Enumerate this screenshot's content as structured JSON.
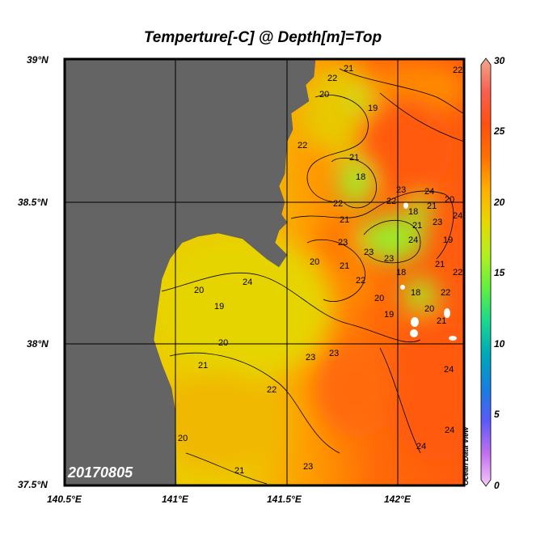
{
  "title": "Temperture[-C] @ Depth[m]=Top",
  "date_label": "20170805",
  "watermark": "Ocean Data View",
  "map": {
    "lon_range": [
      140.5,
      142.3
    ],
    "lat_range": [
      37.5,
      39.0
    ],
    "x_ticks": [
      "140.5°E",
      "141°E",
      "141.5°E",
      "142°E"
    ],
    "y_ticks": [
      "39°N",
      "38.5°N",
      "38°N",
      "37.5°N"
    ],
    "grid": true,
    "land_color": "#646464",
    "contour_labels": [
      "22",
      "21",
      "20",
      "22",
      "19",
      "22",
      "21",
      "18",
      "22",
      "23",
      "24",
      "21",
      "22",
      "23",
      "24",
      "23",
      "21",
      "18",
      "19",
      "20",
      "21",
      "23",
      "24",
      "18",
      "21",
      "22",
      "23",
      "20",
      "21",
      "22",
      "20",
      "19",
      "18",
      "20",
      "21",
      "22",
      "23",
      "24",
      "19",
      "20",
      "21",
      "22",
      "23",
      "24",
      "24",
      "24",
      "23",
      "21",
      "20",
      "20"
    ]
  },
  "colorbar": {
    "range": [
      0,
      30
    ],
    "ticks": [
      "30",
      "25",
      "20",
      "15",
      "10",
      "5",
      "0"
    ],
    "colors": [
      "#f8c8f8",
      "#c070f0",
      "#5a5af8",
      "#1480e0",
      "#00a8b8",
      "#18d890",
      "#60f040",
      "#b0f020",
      "#e8d800",
      "#ffb000",
      "#ff7000",
      "#ff5010",
      "#f86050",
      "#f0a890"
    ]
  }
}
